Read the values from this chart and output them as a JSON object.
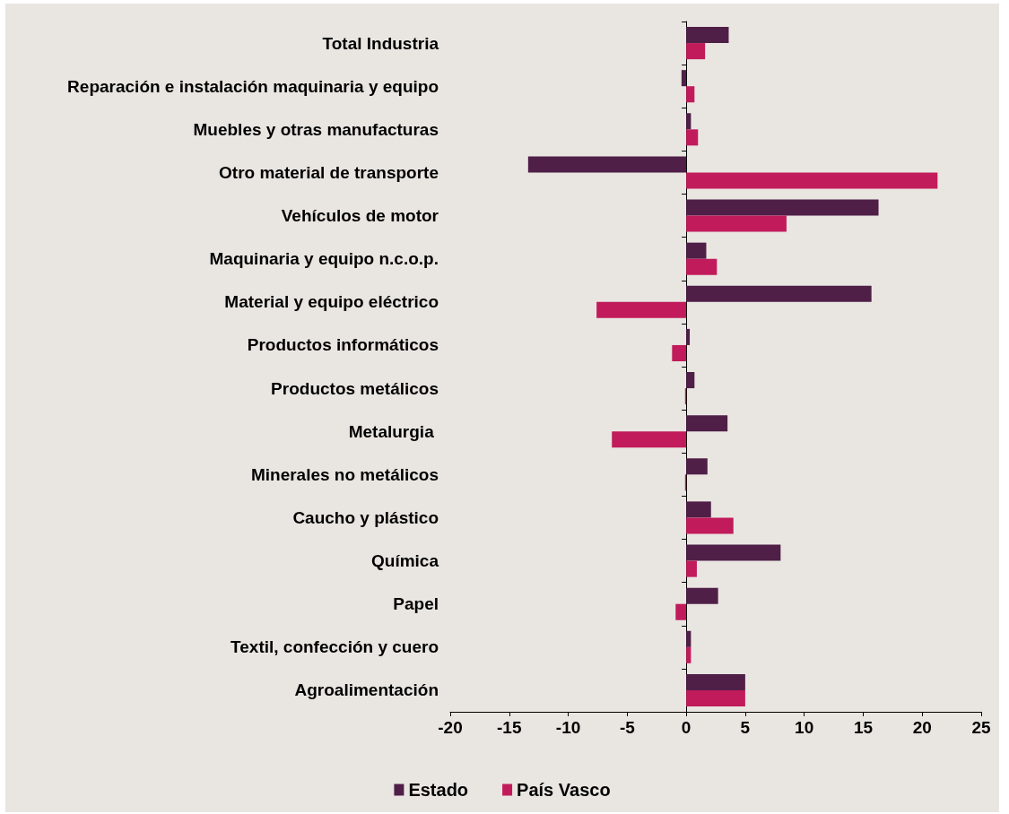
{
  "chart_data": {
    "type": "bar",
    "orientation": "horizontal",
    "categories": [
      "Total Industria",
      "Reparación e instalación maquinaria y equipo",
      "Muebles y otras manufacturas",
      "Otro material de transporte",
      "Vehículos de motor",
      "Maquinaria y equipo n.c.o.p.",
      "Material y equipo eléctrico",
      "Productos informáticos",
      "Productos metálicos",
      "Metalurgia ",
      "Minerales no metálicos",
      "Caucho y plástico",
      "Química",
      "Papel",
      "Textil, confección y cuero",
      "Agroalimentación"
    ],
    "series": [
      {
        "name": "Estado",
        "color": "#4f1f48",
        "values": [
          3.6,
          -0.4,
          0.4,
          -13.4,
          16.3,
          1.7,
          15.7,
          0.3,
          0.7,
          3.5,
          1.8,
          2.1,
          8.0,
          2.7,
          0.4,
          5.0
        ]
      },
      {
        "name": "País Vasco",
        "color": "#c11b5b",
        "values": [
          1.6,
          0.7,
          1.0,
          21.3,
          8.5,
          2.6,
          -7.6,
          -1.2,
          -0.1,
          -6.3,
          -0.1,
          4.0,
          0.9,
          -0.9,
          0.4,
          5.0
        ]
      }
    ],
    "xlim": [
      -20,
      25
    ],
    "xticks": [
      -20,
      -15,
      -10,
      -5,
      0,
      5,
      10,
      15,
      20,
      25
    ],
    "legend": "bottom"
  }
}
